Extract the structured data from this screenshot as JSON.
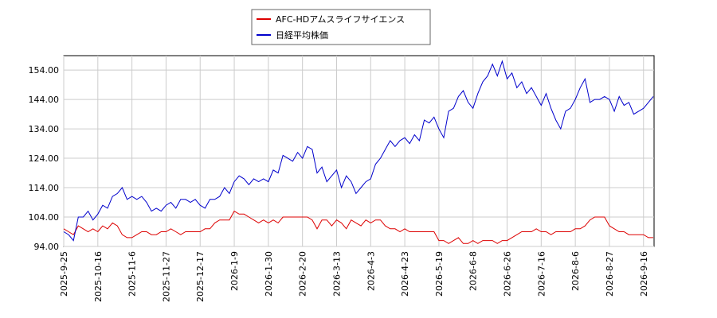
{
  "chart_data": {
    "type": "line",
    "categories": [
      "2025-9-25",
      null,
      null,
      null,
      null,
      null,
      null,
      "2025-10-16",
      null,
      null,
      null,
      null,
      null,
      null,
      "2025-11-6",
      null,
      null,
      null,
      null,
      null,
      null,
      "2025-11-27",
      null,
      null,
      null,
      null,
      null,
      null,
      "2025-12-17",
      null,
      null,
      null,
      null,
      null,
      null,
      "2026-1-9",
      null,
      null,
      null,
      null,
      null,
      null,
      "2026-1-30",
      null,
      null,
      null,
      null,
      null,
      null,
      "2026-2-20",
      null,
      null,
      null,
      null,
      null,
      null,
      "2026-3-13",
      null,
      null,
      null,
      null,
      null,
      null,
      "2026-4-3",
      null,
      null,
      null,
      null,
      null,
      null,
      "2026-4-23",
      null,
      null,
      null,
      null,
      null,
      null,
      "2026-5-19",
      null,
      null,
      null,
      null,
      null,
      null,
      "2026-6-8",
      null,
      null,
      null,
      null,
      null,
      null,
      "2026-6-26",
      null,
      null,
      null,
      null,
      null,
      null,
      "2026-7-16",
      null,
      null,
      null,
      null,
      null,
      null,
      "2026-8-6",
      null,
      null,
      null,
      null,
      null,
      null,
      "2026-8-27",
      null,
      null,
      null,
      null,
      null,
      null,
      "2026-9-16",
      null,
      null
    ],
    "series": [
      {
        "name": "AFC-HDアムスライフサイエンス",
        "color": "#dd0000",
        "values": [
          100,
          99,
          98,
          101,
          100,
          99,
          100,
          99,
          101,
          100,
          102,
          101,
          98,
          97,
          97,
          98,
          99,
          99,
          98,
          98,
          99,
          99,
          100,
          99,
          98,
          99,
          99,
          99,
          99,
          100,
          100,
          102,
          103,
          103,
          103,
          106,
          105,
          105,
          104,
          103,
          102,
          103,
          102,
          103,
          102,
          104,
          104,
          104,
          104,
          104,
          104,
          103,
          100,
          103,
          103,
          101,
          103,
          102,
          100,
          103,
          102,
          101,
          103,
          102,
          103,
          103,
          101,
          100,
          100,
          99,
          100,
          99,
          99,
          99,
          99,
          99,
          99,
          96,
          96,
          95,
          96,
          97,
          95,
          95,
          96,
          95,
          96,
          96,
          96,
          95,
          96,
          96,
          97,
          98,
          99,
          99,
          99,
          100,
          99,
          99,
          98,
          99,
          99,
          99,
          99,
          100,
          100,
          101,
          103,
          104,
          104,
          104,
          101,
          100,
          99,
          99,
          98,
          98,
          98,
          98,
          97,
          97
        ]
      },
      {
        "name": "日経平均株価",
        "color": "#0000cc",
        "values": [
          99,
          98,
          96,
          104,
          104,
          106,
          103,
          105,
          108,
          107,
          111,
          112,
          114,
          110,
          111,
          110,
          111,
          109,
          106,
          107,
          106,
          108,
          109,
          107,
          110,
          110,
          109,
          110,
          108,
          107,
          110,
          110,
          111,
          114,
          112,
          116,
          118,
          117,
          115,
          117,
          116,
          117,
          116,
          120,
          119,
          125,
          124,
          123,
          126,
          124,
          128,
          127,
          119,
          121,
          116,
          118,
          120,
          114,
          118,
          116,
          112,
          114,
          116,
          117,
          122,
          124,
          127,
          130,
          128,
          130,
          131,
          129,
          132,
          130,
          137,
          136,
          138,
          134,
          131,
          140,
          141,
          145,
          147,
          143,
          141,
          146,
          150,
          152,
          156,
          152,
          157,
          151,
          153,
          148,
          150,
          146,
          148,
          145,
          142,
          146,
          141,
          137,
          134,
          140,
          141,
          144,
          148,
          151,
          143,
          144,
          144,
          145,
          144,
          140,
          145,
          142,
          143,
          139,
          140,
          141,
          143,
          145
        ]
      }
    ],
    "ylim": [
      94,
      158.9
    ],
    "yticks": [
      {
        "value": 94,
        "label": "94.00"
      },
      {
        "value": 104,
        "label": "104.00"
      },
      {
        "value": 114,
        "label": "114.00"
      },
      {
        "value": 124,
        "label": "124.00"
      },
      {
        "value": 134,
        "label": "134.00"
      },
      {
        "value": 144,
        "label": "144.00"
      },
      {
        "value": 154,
        "label": "154.00"
      }
    ],
    "grid": true,
    "legend": "top"
  }
}
